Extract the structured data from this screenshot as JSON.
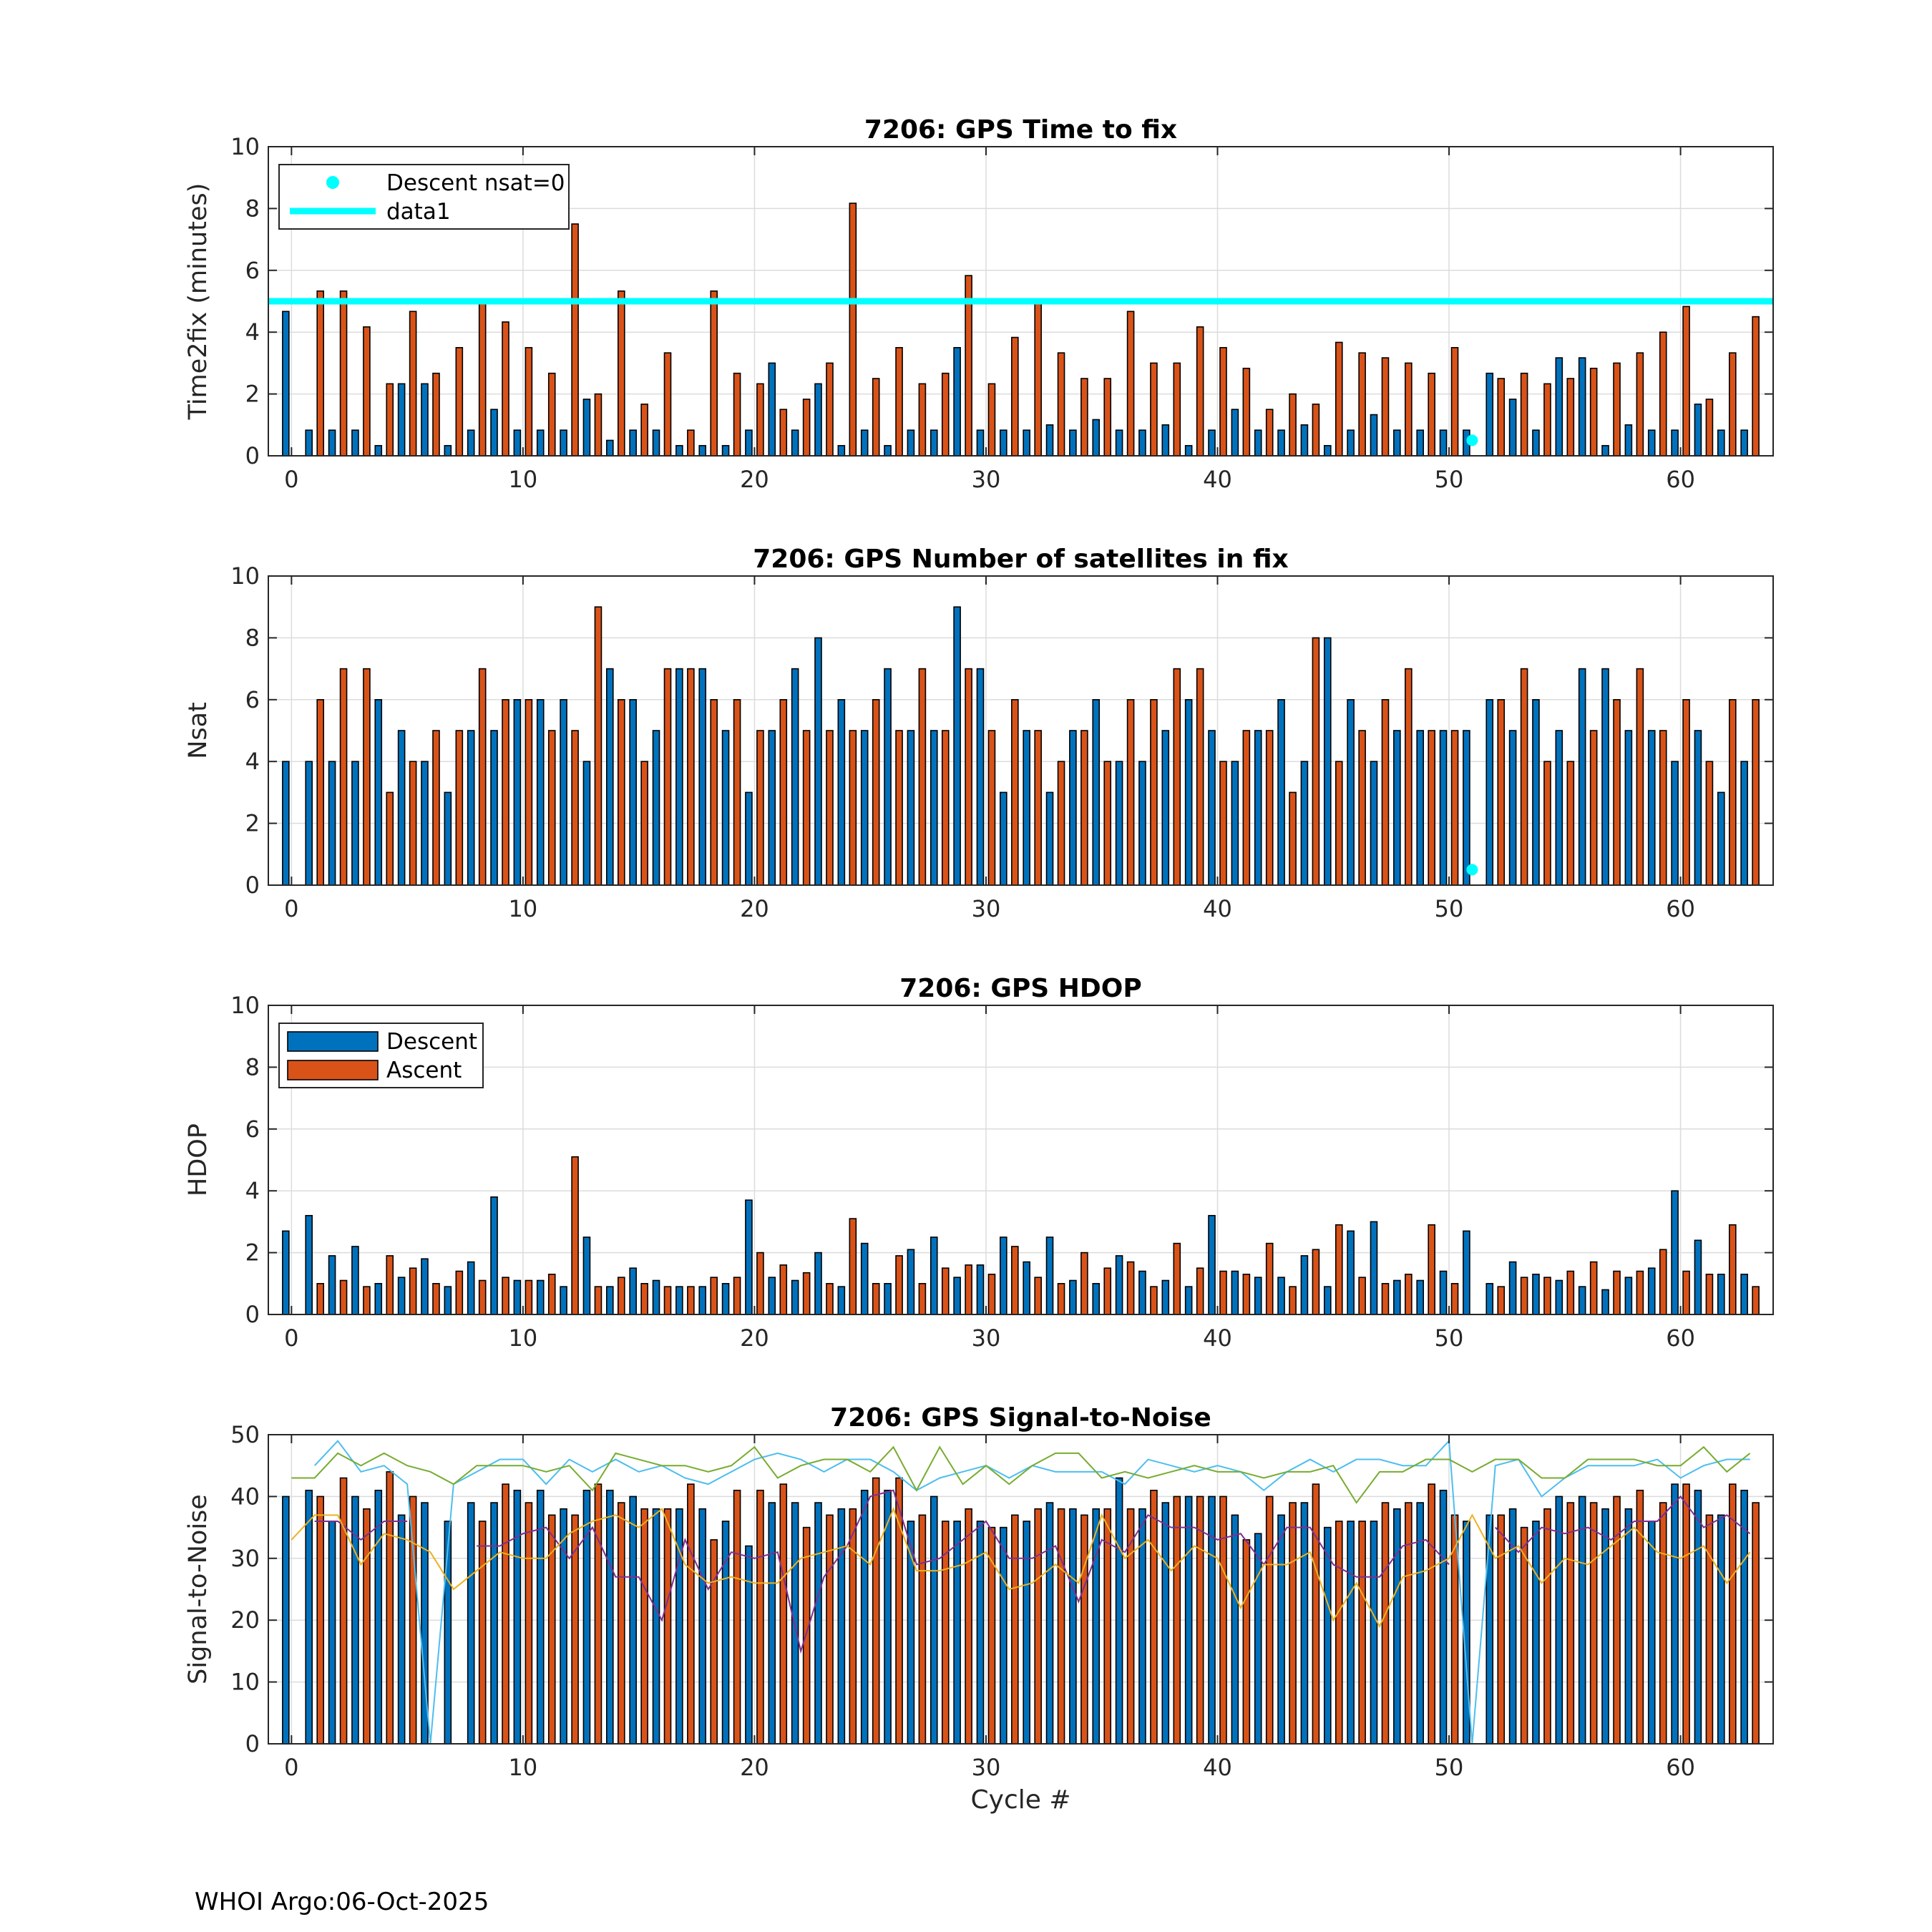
{
  "footer": "WHOI Argo:06-Oct-2025",
  "colors": {
    "descent": "#0072BD",
    "ascent": "#D95319",
    "cyan": "#00FFFF",
    "grid": "#dcdcdc",
    "axis": "#262626",
    "snr_lines": [
      "#4DBEEE",
      "#77AC30",
      "#7E2F8E",
      "#EDB120"
    ]
  },
  "chart_data": [
    {
      "id": "ttf",
      "type": "bar",
      "title": "7206: GPS Time to fix",
      "xlabel": "",
      "ylabel": "Time2fix (minutes)",
      "xlim": [
        -1,
        64
      ],
      "ylim": [
        0,
        10
      ],
      "xticks": [
        0,
        10,
        20,
        30,
        40,
        50,
        60
      ],
      "yticks": [
        0,
        2,
        4,
        6,
        8,
        10
      ],
      "grid": true,
      "legend": {
        "location": "top-left",
        "entries": [
          {
            "label": "Descent nsat=0",
            "kind": "marker",
            "color": "#00FFFF"
          },
          {
            "label": "data1",
            "kind": "line",
            "color": "#00FFFF"
          }
        ]
      },
      "hline": {
        "y": 5,
        "color": "#00FFFF"
      },
      "markers": [
        {
          "x": 51,
          "y": 0.5
        }
      ],
      "series": [
        {
          "name": "Descent",
          "values": [
            4.67,
            0.83,
            0.83,
            0.83,
            0.33,
            2.33,
            2.33,
            0.33,
            0.83,
            1.5,
            0.83,
            0.83,
            0.83,
            1.83,
            0.5,
            0.83,
            0.83,
            0.33,
            0.33,
            0.33,
            0.83,
            3.0,
            0.83,
            2.33,
            0.33,
            0.83,
            0.33,
            0.83,
            0.83,
            3.5,
            0.83,
            0.83,
            0.83,
            1.0,
            0.83,
            1.17,
            0.83,
            0.83,
            1.0,
            0.33,
            0.83,
            1.5,
            0.83,
            0.83,
            1.0,
            0.33,
            0.83,
            1.33,
            0.83,
            0.83,
            0.83,
            0.83,
            2.67,
            1.83,
            0.83,
            3.17,
            3.17,
            0.33,
            1.0,
            0.83,
            0.83,
            1.67,
            0.83,
            0.83
          ]
        },
        {
          "name": "Ascent",
          "values": [
            null,
            5.33,
            5.33,
            4.17,
            2.33,
            4.67,
            2.67,
            3.5,
            5.0,
            4.33,
            3.5,
            2.67,
            7.5,
            2.0,
            5.33,
            1.67,
            3.33,
            0.83,
            5.33,
            2.67,
            2.33,
            1.5,
            1.83,
            3.0,
            8.17,
            2.5,
            3.5,
            2.33,
            2.67,
            5.83,
            2.33,
            3.83,
            5.0,
            3.33,
            2.5,
            2.5,
            4.67,
            3.0,
            3.0,
            4.17,
            3.5,
            2.83,
            1.5,
            2.0,
            1.67,
            3.67,
            3.33,
            3.17,
            3.0,
            2.67,
            3.5,
            null,
            2.5,
            2.67,
            2.33,
            2.5,
            2.83,
            3.0,
            3.33,
            4.0,
            4.83,
            1.83,
            3.33,
            4.5
          ]
        }
      ]
    },
    {
      "id": "nsat",
      "type": "bar",
      "title": "7206: GPS Number of satellites in fix",
      "xlabel": "",
      "ylabel": "Nsat",
      "xlim": [
        -1,
        64
      ],
      "ylim": [
        0,
        10
      ],
      "xticks": [
        0,
        10,
        20,
        30,
        40,
        50,
        60
      ],
      "yticks": [
        0,
        2,
        4,
        6,
        8,
        10
      ],
      "grid": true,
      "markers": [
        {
          "x": 51,
          "y": 0.5
        }
      ],
      "series": [
        {
          "name": "Descent",
          "values": [
            4,
            4,
            4,
            4,
            6,
            5,
            4,
            3,
            5,
            5,
            6,
            6,
            6,
            4,
            7,
            6,
            5,
            7,
            7,
            5,
            3,
            5,
            7,
            8,
            6,
            5,
            7,
            5,
            5,
            9,
            7,
            3,
            5,
            3,
            5,
            6,
            4,
            4,
            5,
            6,
            5,
            4,
            5,
            6,
            4,
            8,
            6,
            4,
            5,
            5,
            5,
            5,
            6,
            5,
            6,
            5,
            7,
            7,
            5,
            5,
            4,
            5,
            3,
            4
          ]
        },
        {
          "name": "Ascent",
          "values": [
            null,
            6,
            7,
            7,
            3,
            4,
            5,
            5,
            7,
            6,
            6,
            5,
            5,
            9,
            6,
            4,
            7,
            7,
            6,
            6,
            5,
            6,
            5,
            5,
            5,
            6,
            5,
            7,
            5,
            7,
            5,
            6,
            5,
            4,
            5,
            4,
            6,
            6,
            7,
            7,
            4,
            5,
            5,
            3,
            8,
            4,
            5,
            6,
            7,
            5,
            5,
            null,
            6,
            7,
            4,
            4,
            5,
            6,
            7,
            5,
            6,
            4,
            6,
            6
          ]
        }
      ]
    },
    {
      "id": "hdop",
      "type": "bar",
      "title": "7206: GPS HDOP",
      "xlabel": "",
      "ylabel": "HDOP",
      "xlim": [
        -1,
        64
      ],
      "ylim": [
        0,
        10
      ],
      "xticks": [
        0,
        10,
        20,
        30,
        40,
        50,
        60
      ],
      "yticks": [
        0,
        2,
        4,
        6,
        8,
        10
      ],
      "grid": true,
      "legend": {
        "location": "top-left",
        "entries": [
          {
            "label": "Descent",
            "kind": "patch",
            "color": "#0072BD"
          },
          {
            "label": "Ascent",
            "kind": "patch",
            "color": "#D95319"
          }
        ]
      },
      "series": [
        {
          "name": "Descent",
          "values": [
            2.7,
            3.2,
            1.9,
            2.2,
            1.0,
            1.2,
            1.8,
            0.9,
            1.7,
            3.8,
            1.1,
            1.1,
            0.9,
            2.5,
            0.9,
            1.5,
            1.1,
            0.9,
            0.9,
            1.0,
            3.7,
            1.2,
            1.1,
            2.0,
            0.9,
            2.3,
            1.0,
            2.1,
            2.5,
            1.2,
            1.6,
            2.5,
            1.7,
            2.5,
            1.1,
            1.0,
            1.9,
            1.4,
            1.1,
            0.9,
            3.2,
            1.4,
            1.2,
            1.2,
            1.9,
            0.9,
            2.7,
            3.0,
            1.1,
            1.1,
            1.4,
            2.7,
            1.0,
            1.7,
            1.3,
            1.1,
            0.9,
            0.8,
            1.2,
            1.5,
            4.0,
            2.4,
            1.3,
            1.3
          ]
        },
        {
          "name": "Ascent",
          "values": [
            null,
            1.0,
            1.1,
            0.9,
            1.9,
            1.5,
            1.0,
            1.4,
            1.1,
            1.2,
            1.1,
            1.3,
            5.1,
            0.9,
            1.2,
            1.0,
            0.9,
            0.9,
            1.2,
            1.2,
            2.0,
            1.6,
            1.35,
            1.0,
            3.1,
            1.0,
            1.9,
            1.0,
            1.5,
            1.6,
            1.3,
            2.2,
            1.2,
            1.0,
            2.0,
            1.5,
            1.7,
            0.9,
            2.3,
            1.5,
            1.4,
            1.3,
            2.3,
            0.9,
            2.1,
            2.9,
            1.2,
            1.0,
            1.3,
            2.9,
            1.0,
            null,
            0.9,
            1.2,
            1.2,
            1.4,
            1.7,
            1.4,
            1.4,
            2.1,
            1.4,
            1.3,
            2.9,
            0.9
          ]
        }
      ]
    },
    {
      "id": "snr",
      "type": "bar",
      "title": "7206: GPS Signal-to-Noise",
      "xlabel": "Cycle #",
      "ylabel": "Signal-to-Noise",
      "xlim": [
        -1,
        64
      ],
      "ylim": [
        0,
        50
      ],
      "xticks": [
        0,
        10,
        20,
        30,
        40,
        50,
        60
      ],
      "yticks": [
        0,
        10,
        20,
        30,
        40,
        50
      ],
      "grid": true,
      "series": [
        {
          "name": "Descent",
          "values": [
            40,
            41,
            36,
            40,
            41,
            37,
            39,
            36,
            39,
            39,
            41,
            41,
            38,
            41,
            41,
            40,
            38,
            38,
            38,
            36,
            32,
            39,
            39,
            39,
            38,
            41,
            41,
            36,
            40,
            36,
            36,
            35,
            36,
            39,
            38,
            38,
            43,
            38,
            39,
            40,
            40,
            37,
            34,
            37,
            39,
            35,
            36,
            36,
            38,
            39,
            41,
            36,
            37,
            38,
            36,
            40,
            40,
            38,
            38,
            36,
            42,
            41,
            37,
            41
          ]
        },
        {
          "name": "Ascent",
          "values": [
            null,
            40,
            43,
            38,
            44,
            40,
            null,
            null,
            36,
            42,
            39,
            37,
            37,
            42,
            39,
            38,
            38,
            42,
            33,
            41,
            41,
            42,
            35,
            37,
            38,
            43,
            43,
            37,
            36,
            38,
            35,
            37,
            38,
            38,
            37,
            38,
            38,
            41,
            40,
            40,
            40,
            33,
            40,
            39,
            42,
            36,
            36,
            39,
            39,
            42,
            37,
            null,
            37,
            35,
            38,
            39,
            39,
            40,
            41,
            39,
            42,
            37,
            42,
            39
          ]
        }
      ],
      "lines": [
        {
          "name": "SNR line 1 (light blue)",
          "color": "#4DBEEE",
          "values": [
            null,
            45,
            49,
            44,
            45,
            42,
            0,
            42,
            44,
            46,
            46,
            42,
            46,
            44,
            46,
            44,
            45,
            43,
            42,
            44,
            46,
            47,
            46,
            44,
            46,
            46,
            44,
            41,
            43,
            44,
            45,
            43,
            45,
            44,
            44,
            44,
            42,
            46,
            45,
            44,
            45,
            44,
            41,
            44,
            46,
            44,
            46,
            46,
            45,
            45,
            49,
            0,
            45,
            46,
            40,
            43,
            45,
            45,
            45,
            46,
            43,
            45,
            46,
            46
          ]
        },
        {
          "name": "SNR line 2 (green)",
          "color": "#77AC30",
          "values": [
            43,
            43,
            47,
            45,
            47,
            45,
            44,
            42,
            45,
            45,
            45,
            44,
            45,
            41,
            47,
            46,
            45,
            45,
            44,
            45,
            48,
            43,
            45,
            46,
            46,
            44,
            48,
            41,
            48,
            42,
            45,
            42,
            45,
            47,
            47,
            43,
            44,
            43,
            44,
            45,
            44,
            44,
            43,
            44,
            44,
            45,
            39,
            44,
            44,
            46,
            46,
            44,
            46,
            46,
            43,
            43,
            46,
            46,
            46,
            45,
            45,
            48,
            44,
            47
          ]
        },
        {
          "name": "SNR line 3 (purple)",
          "color": "#7E2F8E",
          "values": [
            null,
            36,
            36,
            33,
            36,
            36,
            null,
            null,
            32,
            32,
            34,
            35,
            30,
            35,
            27,
            27,
            20,
            33,
            25,
            31,
            30,
            31,
            15,
            27,
            32,
            40,
            41,
            29,
            30,
            33,
            36,
            30,
            30,
            32,
            23,
            33,
            31,
            37,
            35,
            35,
            33,
            34,
            29,
            35,
            35,
            29,
            27,
            27,
            32,
            33,
            29,
            null,
            35,
            31,
            35,
            34,
            35,
            33,
            36,
            36,
            40,
            35,
            37,
            34
          ]
        },
        {
          "name": "SNR line 4 (yellow)",
          "color": "#EDB120",
          "values": [
            33,
            37,
            37,
            29,
            34,
            33,
            31,
            25,
            28,
            31,
            30,
            30,
            34,
            36,
            37,
            35,
            38,
            29,
            26,
            27,
            26,
            26,
            30,
            31,
            32,
            29,
            38,
            28,
            28,
            29,
            31,
            25,
            26,
            29,
            26,
            37,
            30,
            33,
            28,
            32,
            30,
            22,
            29,
            29,
            31,
            20,
            26,
            19,
            27,
            28,
            30,
            37,
            30,
            32,
            26,
            30,
            29,
            32,
            35,
            31,
            30,
            32,
            26,
            31
          ]
        }
      ]
    }
  ]
}
